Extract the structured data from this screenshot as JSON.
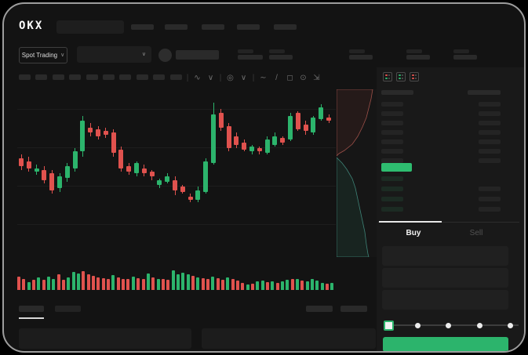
{
  "app": {
    "logo_text": "OKX"
  },
  "icons": {
    "chevron_down": "∨"
  },
  "colors": {
    "green": "#2cb46c",
    "red": "#e0524e",
    "price_bar_green": "#2ebd70",
    "tab_indicator": "#e8e8e8",
    "ask_row": "#242424",
    "bid_row_tint": "#1c2b23",
    "depth_ask_stroke": "#9c5049",
    "depth_ask_fill": "rgba(120,50,45,0.16)",
    "depth_bid_stroke": "#3e8276",
    "depth_bid_fill": "rgba(40,110,85,0.16)"
  },
  "market_selector": {
    "label": "Spot Trading"
  },
  "chart_toolbar": {
    "icons": [
      {
        "name": "divider",
        "glyph": "|"
      },
      {
        "name": "chart-type-icon",
        "glyph": "∿"
      },
      {
        "name": "chevron-down-icon",
        "glyph": "∨"
      },
      {
        "name": "divider",
        "glyph": "|"
      },
      {
        "name": "indicators-icon",
        "glyph": "◎"
      },
      {
        "name": "chevron-down-icon",
        "glyph": "∨"
      },
      {
        "name": "divider",
        "glyph": "|"
      },
      {
        "name": "line-tool-icon",
        "glyph": "∼"
      },
      {
        "name": "draw-tool-icon",
        "glyph": "/"
      },
      {
        "name": "camera-icon",
        "glyph": "◻"
      },
      {
        "name": "settings-icon",
        "glyph": "⊙"
      },
      {
        "name": "fullscreen-icon",
        "glyph": "⇲"
      }
    ]
  },
  "orderbook": {
    "view_icons": [
      "orderbook-view-all",
      "orderbook-view-bids",
      "orderbook-view-asks"
    ],
    "ask_rows": 7,
    "bid_rows": 4
  },
  "trade_panel": {
    "tabs": {
      "buy": "Buy",
      "sell": "Sell"
    },
    "input_count": 3,
    "slider_steps": 5
  },
  "chart_data": {
    "type": "candlestick",
    "title": "",
    "xlabel": "",
    "ylabel": "",
    "ylim": [
      30,
      100
    ],
    "grid": true,
    "candles_ohlc": [
      [
        62,
        64,
        55,
        57
      ],
      [
        60,
        63,
        54,
        56
      ],
      [
        54,
        58,
        52,
        56
      ],
      [
        55,
        57,
        47,
        49
      ],
      [
        53,
        55,
        41,
        43
      ],
      [
        44,
        53,
        42,
        51
      ],
      [
        50,
        59,
        48,
        57
      ],
      [
        56,
        68,
        54,
        66
      ],
      [
        66,
        87,
        63,
        84
      ],
      [
        80,
        83,
        75,
        77
      ],
      [
        79,
        81,
        73,
        75
      ],
      [
        78,
        80,
        74,
        76
      ],
      [
        77,
        79,
        63,
        65
      ],
      [
        67,
        69,
        54,
        56
      ],
      [
        57,
        59,
        52,
        54
      ],
      [
        53,
        60,
        51,
        59
      ],
      [
        56,
        58,
        51,
        53
      ],
      [
        54,
        55,
        49,
        51
      ],
      [
        46,
        50,
        44,
        49
      ],
      [
        48,
        53,
        47,
        51
      ],
      [
        49,
        51,
        40,
        43
      ],
      [
        45,
        46,
        41,
        42
      ],
      [
        39,
        41,
        36,
        37
      ],
      [
        37,
        45,
        36,
        43
      ],
      [
        42,
        62,
        41,
        60
      ],
      [
        59,
        95,
        58,
        88
      ],
      [
        89,
        91,
        78,
        80
      ],
      [
        81,
        83,
        66,
        68
      ],
      [
        75,
        77,
        68,
        70
      ],
      [
        71,
        73,
        66,
        67
      ],
      [
        66,
        70,
        64,
        69
      ],
      [
        68,
        69,
        64,
        66
      ],
      [
        65,
        75,
        64,
        73
      ],
      [
        70,
        77,
        69,
        75
      ],
      [
        74,
        75,
        70,
        71
      ],
      [
        73,
        89,
        72,
        87
      ],
      [
        89,
        90,
        78,
        79
      ],
      [
        82,
        84,
        76,
        78
      ],
      [
        77,
        87,
        76,
        86
      ],
      [
        85,
        94,
        84,
        92
      ],
      [
        86,
        88,
        83,
        84
      ]
    ],
    "volume": [
      [
        60,
        "r"
      ],
      [
        48,
        "r"
      ],
      [
        30,
        "g"
      ],
      [
        42,
        "r"
      ],
      [
        55,
        "g"
      ],
      [
        45,
        "r"
      ],
      [
        62,
        "g"
      ],
      [
        50,
        "g"
      ],
      [
        75,
        "r"
      ],
      [
        42,
        "r"
      ],
      [
        58,
        "g"
      ],
      [
        88,
        "g"
      ],
      [
        80,
        "g"
      ],
      [
        92,
        "r"
      ],
      [
        72,
        "r"
      ],
      [
        64,
        "r"
      ],
      [
        58,
        "r"
      ],
      [
        52,
        "r"
      ],
      [
        48,
        "r"
      ],
      [
        70,
        "g"
      ],
      [
        56,
        "r"
      ],
      [
        50,
        "r"
      ],
      [
        46,
        "r"
      ],
      [
        62,
        "g"
      ],
      [
        53,
        "r"
      ],
      [
        48,
        "r"
      ],
      [
        78,
        "g"
      ],
      [
        58,
        "r"
      ],
      [
        50,
        "g"
      ],
      [
        46,
        "r"
      ],
      [
        42,
        "r"
      ],
      [
        95,
        "g"
      ],
      [
        76,
        "g"
      ],
      [
        82,
        "g"
      ],
      [
        72,
        "g"
      ],
      [
        66,
        "r"
      ],
      [
        58,
        "g"
      ],
      [
        52,
        "r"
      ],
      [
        46,
        "r"
      ],
      [
        62,
        "g"
      ],
      [
        54,
        "r"
      ],
      [
        44,
        "r"
      ],
      [
        58,
        "g"
      ],
      [
        48,
        "r"
      ],
      [
        40,
        "r"
      ],
      [
        24,
        "r"
      ],
      [
        18,
        "g"
      ],
      [
        20,
        "r"
      ],
      [
        34,
        "g"
      ],
      [
        38,
        "g"
      ],
      [
        30,
        "r"
      ],
      [
        36,
        "g"
      ],
      [
        28,
        "r"
      ],
      [
        34,
        "g"
      ],
      [
        44,
        "g"
      ],
      [
        50,
        "r"
      ],
      [
        46,
        "g"
      ],
      [
        38,
        "r"
      ],
      [
        34,
        "g"
      ],
      [
        48,
        "g"
      ],
      [
        40,
        "g"
      ],
      [
        26,
        "g"
      ],
      [
        20,
        "r"
      ],
      [
        28,
        "g"
      ]
    ],
    "depth": {
      "asks_curve": "46,0 44,12 41,24 38,36 33,48 27,60 20,70 10,78 3,82 0,85",
      "bids_curve": "0,87 7,94 13,102 20,114 24,126 27,140 30,154 33,168 36,182 38,198 40,210 41,214"
    }
  }
}
